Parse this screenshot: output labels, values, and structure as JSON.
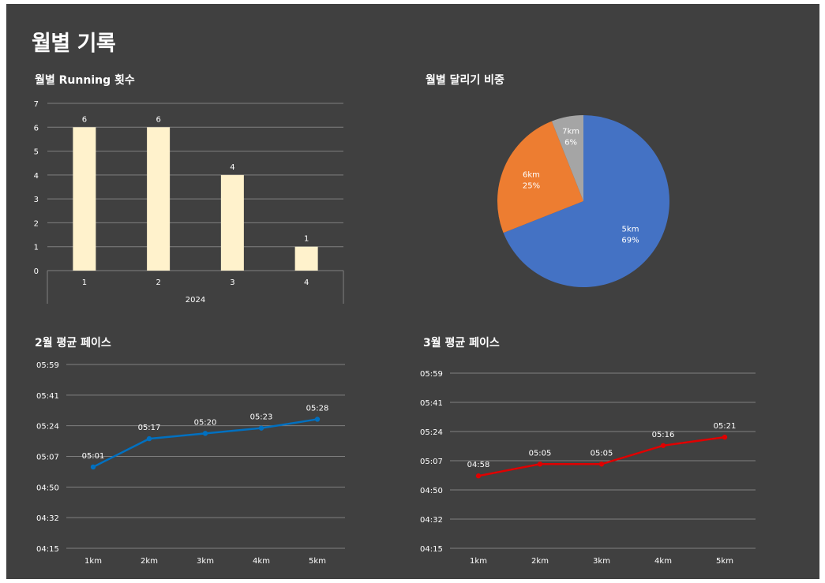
{
  "page": {
    "title": "월별 기록"
  },
  "colors": {
    "background": "#404040",
    "text": "#ffffff",
    "grid": "#7f7f7f",
    "bar": "#fff2cc",
    "pie_5km": "#4472c4",
    "pie_6km": "#ed7d31",
    "pie_7km": "#a5a5a5",
    "line_feb": "#0070c0",
    "line_mar": "#e00000"
  },
  "chart_data": [
    {
      "id": "monthly_runs",
      "type": "bar",
      "title": "월별 Running 횟수",
      "categories": [
        "1",
        "2",
        "3",
        "4"
      ],
      "group_label": "2024",
      "values": [
        6,
        6,
        4,
        1
      ],
      "data_labels": [
        "6",
        "6",
        "4",
        "1"
      ],
      "yticks": [
        "0",
        "1",
        "2",
        "3",
        "4",
        "5",
        "6",
        "7"
      ],
      "ylim": [
        0,
        7
      ],
      "grid": true
    },
    {
      "id": "distance_share",
      "type": "pie",
      "title": "월별 달리기 비중",
      "slices": [
        {
          "label": "5km",
          "percent_label": "69%",
          "value": 69
        },
        {
          "label": "6km",
          "percent_label": "25%",
          "value": 25
        },
        {
          "label": "7km",
          "percent_label": "6%",
          "value": 6
        }
      ]
    },
    {
      "id": "feb_pace",
      "type": "line",
      "title": "2월 평균 페이스",
      "categories": [
        "1km",
        "2km",
        "3km",
        "4km",
        "5km"
      ],
      "labels": [
        "05:01",
        "05:17",
        "05:20",
        "05:23",
        "05:28"
      ],
      "values_sec": [
        301,
        317,
        320,
        323,
        328
      ],
      "yticks": [
        "04:15",
        "04:32",
        "04:50",
        "05:07",
        "05:24",
        "05:41",
        "05:59"
      ],
      "ylim_sec": [
        255,
        359
      ],
      "grid": true
    },
    {
      "id": "mar_pace",
      "type": "line",
      "title": "3월 평균 페이스",
      "categories": [
        "1km",
        "2km",
        "3km",
        "4km",
        "5km"
      ],
      "labels": [
        "04:58",
        "05:05",
        "05:05",
        "05:16",
        "05:21"
      ],
      "values_sec": [
        298,
        305,
        305,
        316,
        321
      ],
      "yticks": [
        "04:15",
        "04:32",
        "04:50",
        "05:07",
        "05:24",
        "05:41",
        "05:59"
      ],
      "ylim_sec": [
        255,
        359
      ],
      "grid": true
    }
  ]
}
